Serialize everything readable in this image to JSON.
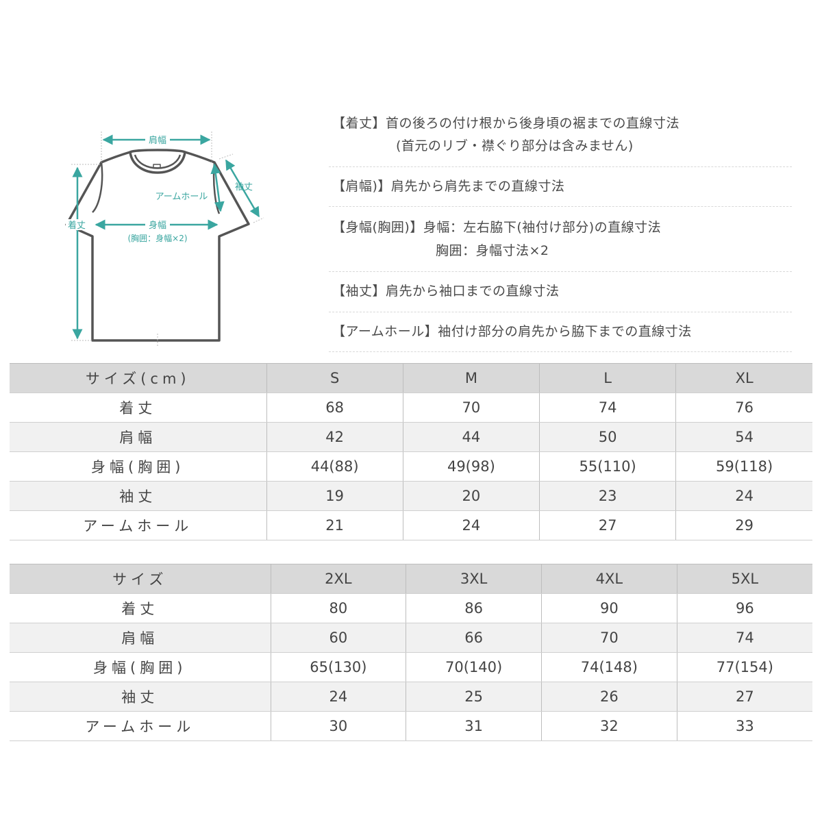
{
  "diagram": {
    "labels": {
      "shoulder": "肩幅",
      "length": "着丈",
      "sleeve": "袖丈",
      "armhole": "アームホール",
      "body_width": "身幅",
      "chest_note": "(胸囲：身幅×2)"
    },
    "accent_color": "#3aa6a0",
    "outline_color": "#555555"
  },
  "descriptions": [
    {
      "text": "【着丈】首の後ろの付け根から後身頃の裾までの直線寸法"
    },
    {
      "text": "(首元のリブ・襟ぐり部分は含みません)"
    },
    {
      "text": "【肩幅)】肩先から肩先までの直線寸法"
    },
    {
      "text": "【身幅(胸囲)】身幅：左右脇下(袖付け部分)の直線寸法"
    },
    {
      "text": "胸囲：身幅寸法×2"
    },
    {
      "text": "【袖丈】肩先から袖口までの直線寸法"
    },
    {
      "text": "【アームホール】袖付け部分の肩先から脇下までの直線寸法"
    }
  ],
  "tables": [
    {
      "header": [
        "サイズ(cm)",
        "S",
        "M",
        "L",
        "XL"
      ],
      "rows": [
        [
          "着丈",
          "68",
          "70",
          "74",
          "76"
        ],
        [
          "肩幅",
          "42",
          "44",
          "50",
          "54"
        ],
        [
          "身幅(胸囲)",
          "44(88)",
          "49(98)",
          "55(110)",
          "59(118)"
        ],
        [
          "袖丈",
          "19",
          "20",
          "23",
          "24"
        ],
        [
          "アームホール",
          "21",
          "24",
          "27",
          "29"
        ]
      ]
    },
    {
      "header": [
        "サイズ",
        "2XL",
        "3XL",
        "4XL",
        "5XL"
      ],
      "rows": [
        [
          "着丈",
          "80",
          "86",
          "90",
          "96"
        ],
        [
          "肩幅",
          "60",
          "66",
          "70",
          "74"
        ],
        [
          "身幅(胸囲)",
          "65(130)",
          "70(140)",
          "74(148)",
          "77(154)"
        ],
        [
          "袖丈",
          "24",
          "25",
          "26",
          "27"
        ],
        [
          "アームホール",
          "30",
          "31",
          "32",
          "33"
        ]
      ]
    }
  ]
}
